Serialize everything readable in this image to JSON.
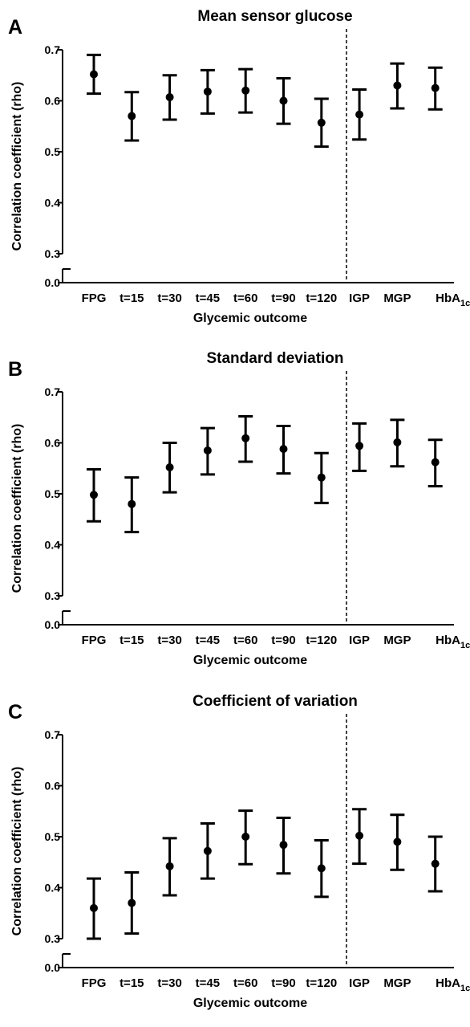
{
  "chart_data": [
    {
      "type": "scatter",
      "panel_label": "A",
      "title": "Mean sensor glucose",
      "xlabel": "Glycemic outcome",
      "ylabel": "Correlation coefficient (rho)",
      "ylim": [
        0.3,
        0.7
      ],
      "axis_break": true,
      "yticks": [
        "0.7",
        "0.6",
        "0.5",
        "0.4",
        "0.3",
        "0.0"
      ],
      "categories": [
        "FPG",
        "t=15",
        "t=30",
        "t=45",
        "t=60",
        "t=90",
        "t=120",
        "IGP",
        "MGP",
        "HbA1c"
      ],
      "divider_after": "t=120",
      "series": [
        {
          "values": [
            0.652,
            0.57,
            0.607,
            0.618,
            0.62,
            0.6,
            0.557,
            0.573,
            0.63,
            0.625
          ],
          "lower": [
            0.614,
            0.522,
            0.563,
            0.575,
            0.577,
            0.555,
            0.51,
            0.524,
            0.585,
            0.583
          ],
          "upper": [
            0.69,
            0.617,
            0.65,
            0.66,
            0.662,
            0.644,
            0.604,
            0.622,
            0.673,
            0.665
          ]
        }
      ]
    },
    {
      "type": "scatter",
      "panel_label": "B",
      "title": "Standard deviation",
      "xlabel": "Glycemic outcome",
      "ylabel": "Correlation coefficient (rho)",
      "ylim": [
        0.3,
        0.7
      ],
      "axis_break": true,
      "yticks": [
        "0.7",
        "0.6",
        "0.5",
        "0.4",
        "0.3",
        "0.0"
      ],
      "categories": [
        "FPG",
        "t=15",
        "t=30",
        "t=45",
        "t=60",
        "t=90",
        "t=120",
        "IGP",
        "MGP",
        "HbA1c"
      ],
      "divider_after": "t=120",
      "series": [
        {
          "values": [
            0.498,
            0.48,
            0.552,
            0.585,
            0.609,
            0.588,
            0.532,
            0.594,
            0.601,
            0.562
          ],
          "lower": [
            0.446,
            0.425,
            0.503,
            0.538,
            0.563,
            0.54,
            0.482,
            0.545,
            0.554,
            0.515
          ],
          "upper": [
            0.548,
            0.532,
            0.6,
            0.629,
            0.652,
            0.633,
            0.58,
            0.638,
            0.645,
            0.606
          ]
        }
      ]
    },
    {
      "type": "scatter",
      "panel_label": "C",
      "title": "Coefficient of variation",
      "xlabel": "Glycemic outcome",
      "ylabel": "Correlation coefficient (rho)",
      "ylim": [
        0.3,
        0.7
      ],
      "axis_break": true,
      "yticks": [
        "0.7",
        "0.6",
        "0.5",
        "0.4",
        "0.3",
        "0.0"
      ],
      "categories": [
        "FPG",
        "t=15",
        "t=30",
        "t=45",
        "t=60",
        "t=90",
        "t=120",
        "IGP",
        "MGP",
        "HbA1c"
      ],
      "divider_after": "t=120",
      "series": [
        {
          "values": [
            0.36,
            0.37,
            0.442,
            0.472,
            0.5,
            0.484,
            0.438,
            0.502,
            0.49,
            0.447
          ],
          "lower": [
            0.3,
            0.31,
            0.385,
            0.418,
            0.446,
            0.428,
            0.382,
            0.447,
            0.435,
            0.393
          ],
          "upper": [
            0.418,
            0.43,
            0.497,
            0.526,
            0.551,
            0.537,
            0.493,
            0.554,
            0.543,
            0.5
          ]
        }
      ]
    }
  ]
}
